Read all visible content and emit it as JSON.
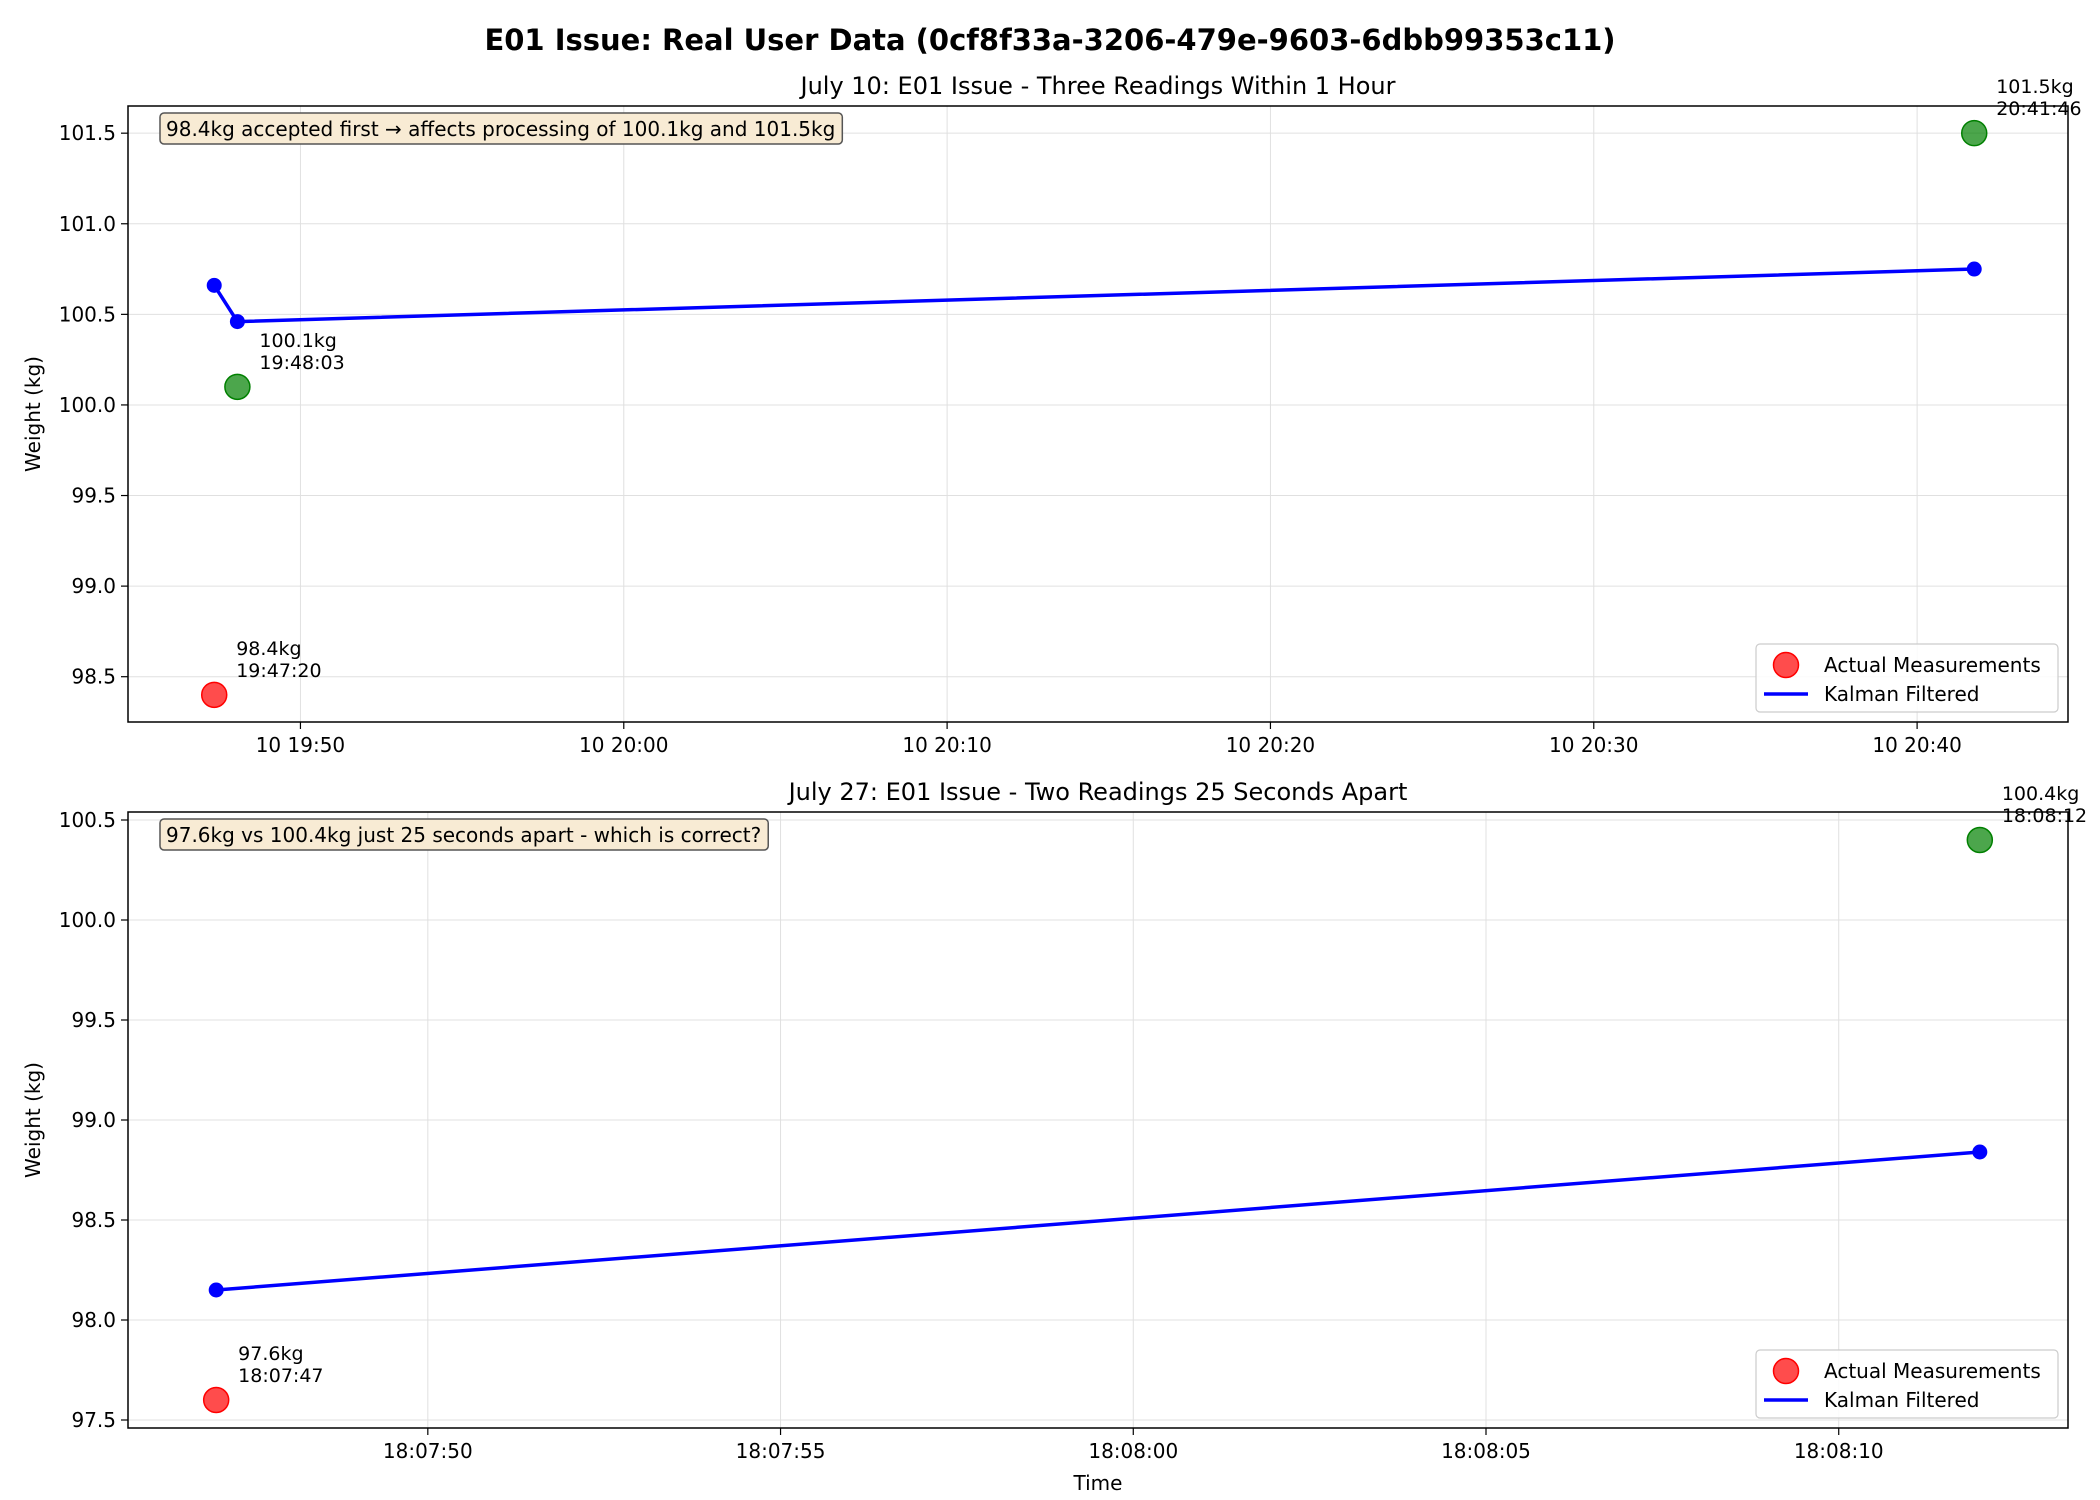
{
  "figure": {
    "suptitle": "E01 Issue: Real User Data (0cf8f33a-3206-479e-9603-6dbb99353c11)"
  },
  "colors": {
    "accepted": "#ff0000",
    "rejected": "#008000",
    "filtered": "#0000ff",
    "grid": "#e0e0e0",
    "box_fill": "#f8ebd4",
    "box_edge": "#555555"
  },
  "legend": {
    "measurements": "Actual Measurements",
    "filtered": "Kalman Filtered"
  },
  "chart_data": [
    {
      "type": "line",
      "title": "July 10: E01 Issue - Three Readings Within 1 Hour",
      "xlabel": "",
      "ylabel": "Weight (kg)",
      "x_unit": "minutes",
      "xlim": [
        "19:44:40",
        "20:44:40"
      ],
      "ylim": [
        98.25,
        101.65
      ],
      "grid": true,
      "legend_position": "lower right",
      "x_ticks": [
        {
          "x": "19:50:00",
          "label": "10 19:50"
        },
        {
          "x": "20:00:00",
          "label": "10 20:00"
        },
        {
          "x": "20:10:00",
          "label": "10 20:10"
        },
        {
          "x": "20:20:00",
          "label": "10 20:20"
        },
        {
          "x": "20:30:00",
          "label": "10 20:30"
        },
        {
          "x": "20:40:00",
          "label": "10 20:40"
        }
      ],
      "y_ticks": [
        98.5,
        99.0,
        99.5,
        100.0,
        100.5,
        101.0,
        101.5
      ],
      "y_tick_labels": [
        "98.5",
        "99.0",
        "99.5",
        "100.0",
        "100.5",
        "101.0",
        "101.5"
      ],
      "measurements": [
        {
          "time": "19:47:20",
          "weight": 98.4,
          "status": "accepted",
          "label": "98.4kg",
          "time_label": "19:47:20"
        },
        {
          "time": "19:48:03",
          "weight": 100.1,
          "status": "rejected",
          "label": "100.1kg",
          "time_label": "19:48:03"
        },
        {
          "time": "20:41:46",
          "weight": 101.5,
          "status": "rejected",
          "label": "101.5kg",
          "time_label": "20:41:46"
        }
      ],
      "filtered": [
        {
          "time": "19:47:20",
          "weight": 100.66
        },
        {
          "time": "19:48:03",
          "weight": 100.46
        },
        {
          "time": "20:41:46",
          "weight": 100.75
        }
      ],
      "annotation": "98.4kg accepted first → affects processing of 100.1kg and 101.5kg"
    },
    {
      "type": "line",
      "title": "July 27: E01 Issue - Two Readings 25 Seconds Apart",
      "xlabel": "Time",
      "ylabel": "Weight (kg)",
      "x_unit": "seconds",
      "xlim": [
        "18:07:45.75",
        "18:08:13.25"
      ],
      "ylim": [
        97.46,
        100.54
      ],
      "grid": true,
      "legend_position": "lower right",
      "x_ticks": [
        {
          "x": "18:07:50",
          "label": "18:07:50"
        },
        {
          "x": "18:07:55",
          "label": "18:07:55"
        },
        {
          "x": "18:08:00",
          "label": "18:08:00"
        },
        {
          "x": "18:08:05",
          "label": "18:08:05"
        },
        {
          "x": "18:08:10",
          "label": "18:08:10"
        }
      ],
      "y_ticks": [
        97.5,
        98.0,
        98.5,
        99.0,
        99.5,
        100.0,
        100.5
      ],
      "y_tick_labels": [
        "97.5",
        "98.0",
        "98.5",
        "99.0",
        "99.5",
        "100.0",
        "100.5"
      ],
      "measurements": [
        {
          "time": "18:07:47",
          "weight": 97.6,
          "status": "accepted",
          "label": "97.6kg",
          "time_label": "18:07:47"
        },
        {
          "time": "18:08:12",
          "weight": 100.4,
          "status": "rejected",
          "label": "100.4kg",
          "time_label": "18:08:12"
        }
      ],
      "filtered": [
        {
          "time": "18:07:47",
          "weight": 98.15
        },
        {
          "time": "18:08:12",
          "weight": 98.84
        }
      ],
      "annotation": "97.6kg vs 100.4kg just 25 seconds apart - which is correct?"
    }
  ]
}
